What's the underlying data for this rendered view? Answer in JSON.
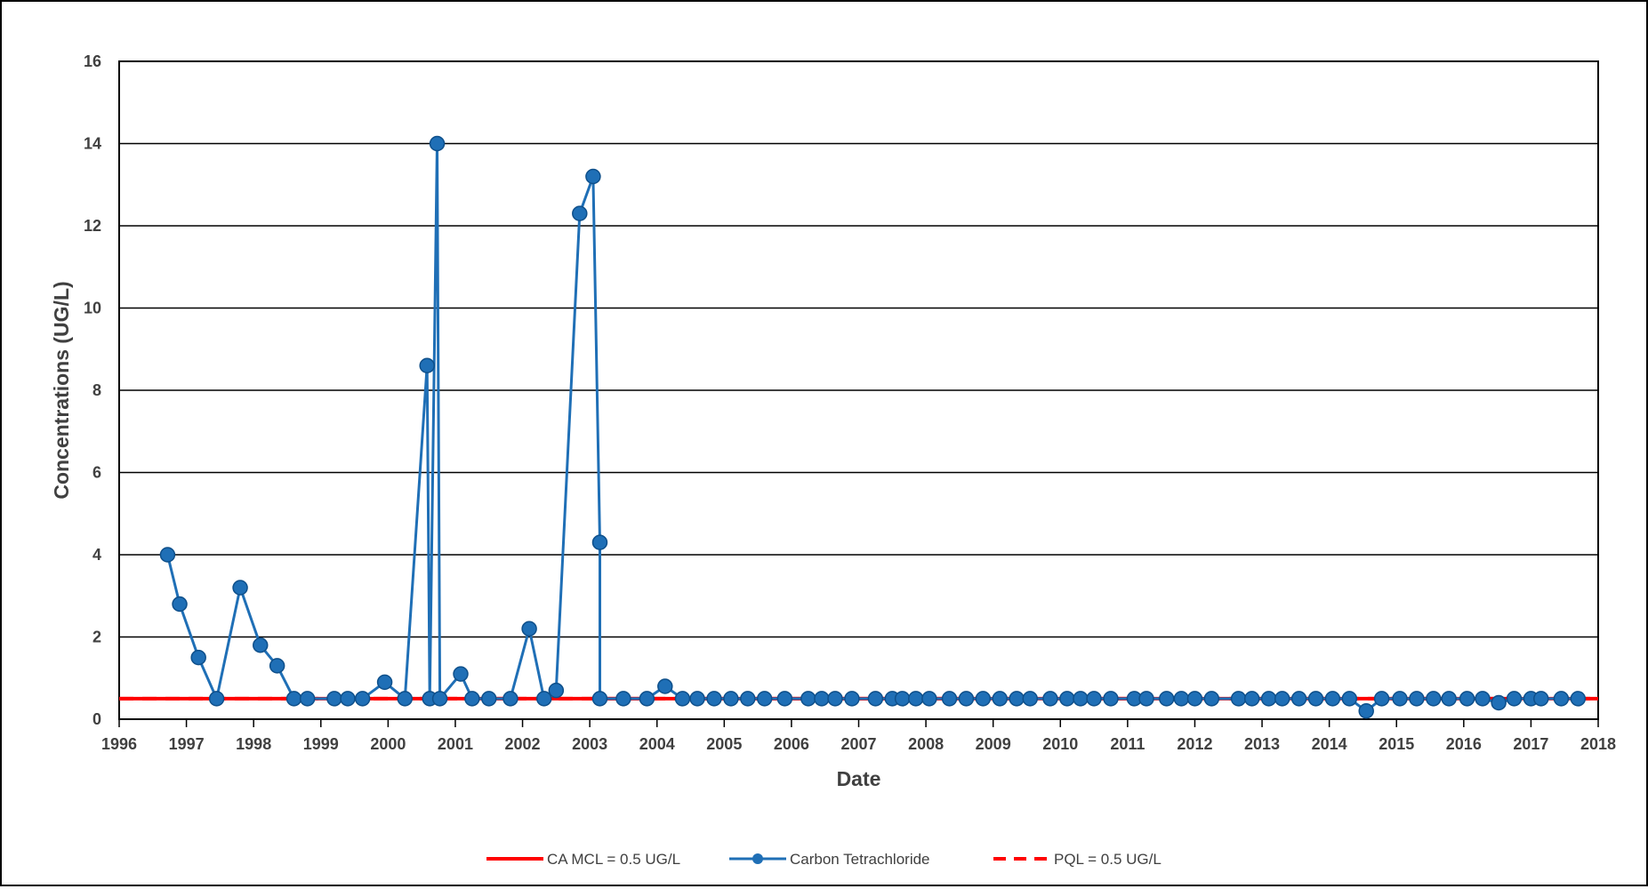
{
  "chart_data": {
    "type": "line",
    "xlabel": "Date",
    "ylabel": "Concentrations (UG/L)",
    "xlim": [
      1996,
      2018
    ],
    "ylim": [
      0,
      16
    ],
    "x_ticks": [
      "1996",
      "1997",
      "1998",
      "1999",
      "2000",
      "2001",
      "2002",
      "2003",
      "2004",
      "2005",
      "2006",
      "2007",
      "2008",
      "2009",
      "2010",
      "2011",
      "2012",
      "2013",
      "2014",
      "2015",
      "2016",
      "2017",
      "2018"
    ],
    "y_ticks": [
      "0",
      "2",
      "4",
      "6",
      "8",
      "10",
      "12",
      "14",
      "16"
    ],
    "grid": "horizontal",
    "legend_position": "bottom",
    "colors": {
      "mcl": "#ff0000",
      "series": "#1f6fb6",
      "marker": "#1f6fb6",
      "pql": "#ff0000"
    },
    "series": [
      {
        "name": "CA MCL = 0.5 UG/L",
        "style": "solid",
        "value": 0.5
      },
      {
        "name": "Carbon Tetrachloride",
        "style": "line-marker",
        "points": [
          [
            1996.72,
            4.0
          ],
          [
            1996.9,
            2.8
          ],
          [
            1997.18,
            1.5
          ],
          [
            1997.45,
            0.5
          ],
          [
            1997.8,
            3.2
          ],
          [
            1998.1,
            1.8
          ],
          [
            1998.35,
            1.3
          ],
          [
            1998.6,
            0.5
          ],
          [
            1998.8,
            0.5
          ],
          [
            1999.2,
            0.5
          ],
          [
            1999.4,
            0.5
          ],
          [
            1999.62,
            0.5
          ],
          [
            1999.95,
            0.9
          ],
          [
            2000.25,
            0.5
          ],
          [
            2000.58,
            8.6
          ],
          [
            2000.62,
            0.5
          ],
          [
            2000.73,
            14.0
          ],
          [
            2000.77,
            0.5
          ],
          [
            2001.08,
            1.1
          ],
          [
            2001.25,
            0.5
          ],
          [
            2001.5,
            0.5
          ],
          [
            2001.82,
            0.5
          ],
          [
            2002.1,
            2.2
          ],
          [
            2002.32,
            0.5
          ],
          [
            2002.5,
            0.7
          ],
          [
            2002.85,
            12.3
          ],
          [
            2003.05,
            13.2
          ],
          [
            2003.15,
            4.3
          ],
          [
            2003.15,
            0.5
          ],
          [
            2003.5,
            0.5
          ],
          [
            2003.85,
            0.5
          ],
          [
            2004.12,
            0.8
          ],
          [
            2004.38,
            0.5
          ],
          [
            2004.6,
            0.5
          ],
          [
            2004.85,
            0.5
          ],
          [
            2005.1,
            0.5
          ],
          [
            2005.35,
            0.5
          ],
          [
            2005.6,
            0.5
          ],
          [
            2005.9,
            0.5
          ],
          [
            2006.25,
            0.5
          ],
          [
            2006.45,
            0.5
          ],
          [
            2006.65,
            0.5
          ],
          [
            2006.9,
            0.5
          ],
          [
            2007.25,
            0.5
          ],
          [
            2007.5,
            0.5
          ],
          [
            2007.65,
            0.5
          ],
          [
            2007.85,
            0.5
          ],
          [
            2008.05,
            0.5
          ],
          [
            2008.35,
            0.5
          ],
          [
            2008.6,
            0.5
          ],
          [
            2008.85,
            0.5
          ],
          [
            2009.1,
            0.5
          ],
          [
            2009.35,
            0.5
          ],
          [
            2009.55,
            0.5
          ],
          [
            2009.85,
            0.5
          ],
          [
            2010.1,
            0.5
          ],
          [
            2010.3,
            0.5
          ],
          [
            2010.5,
            0.5
          ],
          [
            2010.75,
            0.5
          ],
          [
            2011.1,
            0.5
          ],
          [
            2011.28,
            0.5
          ],
          [
            2011.58,
            0.5
          ],
          [
            2011.8,
            0.5
          ],
          [
            2012.0,
            0.5
          ],
          [
            2012.25,
            0.5
          ],
          [
            2012.65,
            0.5
          ],
          [
            2012.85,
            0.5
          ],
          [
            2013.1,
            0.5
          ],
          [
            2013.3,
            0.5
          ],
          [
            2013.55,
            0.5
          ],
          [
            2013.8,
            0.5
          ],
          [
            2014.05,
            0.5
          ],
          [
            2014.3,
            0.5
          ],
          [
            2014.55,
            0.2
          ],
          [
            2014.78,
            0.5
          ],
          [
            2015.05,
            0.5
          ],
          [
            2015.3,
            0.5
          ],
          [
            2015.55,
            0.5
          ],
          [
            2015.78,
            0.5
          ],
          [
            2016.05,
            0.5
          ],
          [
            2016.28,
            0.5
          ],
          [
            2016.52,
            0.4
          ],
          [
            2016.75,
            0.5
          ],
          [
            2017.0,
            0.5
          ],
          [
            2017.15,
            0.5
          ],
          [
            2017.45,
            0.5
          ],
          [
            2017.7,
            0.5
          ]
        ]
      },
      {
        "name": "PQL = 0.5 UG/L",
        "style": "dashed",
        "value": 0.5
      }
    ]
  }
}
